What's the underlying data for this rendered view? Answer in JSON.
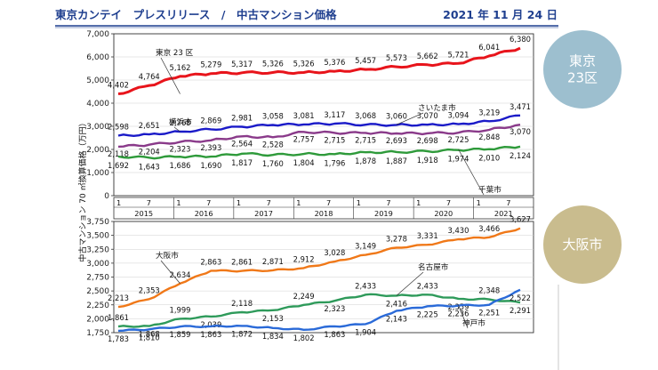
{
  "header": {
    "title": "東京カンテイ　プレスリリース　/　中古マンション価格",
    "date": "2021 年 11 月 24 日"
  },
  "badges": [
    {
      "lines": [
        "東京",
        "23区"
      ],
      "color": "#9dbfcf"
    },
    {
      "lines": [
        "大阪市"
      ],
      "color": "#c9bc8e"
    }
  ],
  "chart_data": {
    "type": "line",
    "ylabel": "中古マンション 70 ㎡換算価格（万円）",
    "x_axis": {
      "month_ticks": [
        "1",
        "7",
        "1",
        "7",
        "1",
        "7",
        "1",
        "7",
        "1",
        "7",
        "1",
        "7",
        "1",
        "7"
      ],
      "years": [
        "2015",
        "2016",
        "2017",
        "2018",
        "2019",
        "2020",
        "2021"
      ]
    },
    "panels": [
      {
        "name": "top",
        "ylim": [
          0,
          7000
        ],
        "yticks": [
          "0",
          "1,000",
          "2,000",
          "3,000",
          "4,000",
          "5,000",
          "6,000",
          "7,000"
        ],
        "series": [
          {
            "name": "東京 23 区",
            "color": "#e8141b",
            "values": [
              4402,
              4764,
              5162,
              5279,
              5317,
              5326,
              5326,
              5376,
              5457,
              5573,
              5662,
              5721,
              6041,
              6380
            ],
            "labels": [
              "4,402",
              "4,764",
              "5,162",
              "5,279",
              "5,317",
              "5,326",
              "5,326",
              "5,376",
              "5,457",
              "5,573",
              "5,662",
              "5,721",
              "6,041",
              "6,380"
            ]
          },
          {
            "name": "横浜市",
            "color": "#1a1ac8",
            "values": [
              2598,
              2651,
              2768,
              2869,
              2981,
              3058,
              3081,
              3117,
              3068,
              3060,
              3070,
              3094,
              3219,
              3471
            ],
            "labels": [
              "2,598",
              "2,651",
              "2,768",
              "2,869",
              "2,981",
              "3,058",
              "3,081",
              "3,117",
              "3,068",
              "3,060",
              "3,070",
              "3,094",
              "3,219",
              "3,471"
            ]
          },
          {
            "name": "さいたま市",
            "color": "#8a3a8a",
            "values": [
              2118,
              2204,
              2323,
              2393,
              2564,
              2528,
              2757,
              2715,
              2715,
              2693,
              2698,
              2725,
              2848,
              3070
            ],
            "labels": [
              "2,118",
              "2,204",
              "2,323",
              "2,393",
              "2,564",
              "2,528",
              "2,757",
              "2,715",
              "2,715",
              "2,693",
              "2,698",
              "2,725",
              "2,848",
              "3,070"
            ]
          },
          {
            "name": "千葉市",
            "color": "#2e9a3a",
            "values": [
              1692,
              1643,
              1686,
              1690,
              1817,
              1760,
              1804,
              1796,
              1878,
              1887,
              1918,
              1974,
              2010,
              2124
            ],
            "labels": [
              "1,692",
              "1,643",
              "1,686",
              "1,690",
              "1,817",
              "1,760",
              "1,804",
              "1,796",
              "1,878",
              "1,887",
              "1,918",
              "1,974",
              "2,010",
              "2,124"
            ]
          }
        ]
      },
      {
        "name": "bottom",
        "ylim": [
          1750,
          3750
        ],
        "yticks": [
          "1,750",
          "2,000",
          "2,250",
          "2,500",
          "2,750",
          "3,000",
          "3,250",
          "3,500",
          "3,750"
        ],
        "series": [
          {
            "name": "大阪市",
            "color": "#f07818",
            "values": [
              2213,
              2353,
              2634,
              2863,
              2861,
              2871,
              2912,
              3028,
              3149,
              3278,
              3331,
              3430,
              3466,
              3627
            ],
            "labels": [
              "2,213",
              "2,353",
              "2,634",
              "2,863",
              "2,861",
              "2,871",
              "2,912",
              "3,028",
              "3,149",
              "3,278",
              "3,331",
              "3,430",
              "3,466",
              "3,627"
            ]
          },
          {
            "name": "名古屋市",
            "color": "#2e9a5a",
            "values": [
              1861,
              1868,
              1999,
              2039,
              2118,
              2153,
              2249,
              2323,
              2433,
              2416,
              2433,
              2359,
              2348,
              2291
            ],
            "labels": [
              "1,861",
              "1,868",
              "1,999",
              "2,039",
              "2,118",
              "2,153",
              "2,249",
              "2,323",
              "2,433",
              "2,416",
              "2,433",
              "2,359",
              "2,348",
              "2,291"
            ]
          },
          {
            "name": "神戸市",
            "color": "#2a6ad8",
            "values": [
              1783,
              1810,
              1859,
              1863,
              1872,
              1834,
              1802,
              1863,
              1904,
              2143,
              2225,
              2236,
              2251,
              2522
            ],
            "labels": [
              "1,783",
              "1,810",
              "1,859",
              "1,863",
              "1,872",
              "1,834",
              "1,802",
              "1,863",
              "1,904",
              "2,143",
              "2,225",
              "2,236",
              "2,251",
              "2,522"
            ]
          }
        ]
      }
    ]
  }
}
